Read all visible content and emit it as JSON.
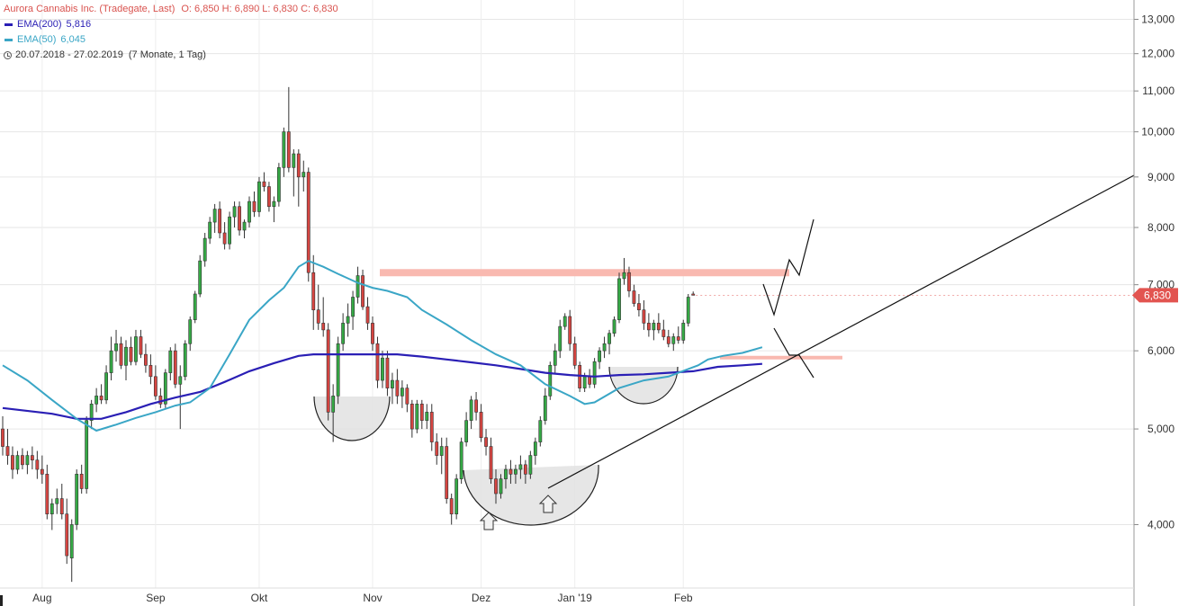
{
  "header": {
    "title": "Aurora Cannabis Inc. (Tradegate, Last)",
    "ohlc": "O: 6,850  H: 6,890  L: 6,830  C: 6,830",
    "ema200_label": "EMA(200)",
    "ema200_value": "5,816",
    "ema50_label": "EMA(50)",
    "ema50_value": "6,045",
    "range": "20.07.2018 - 27.02.2019",
    "period": "(7 Monate, 1 Tag)"
  },
  "colors": {
    "up": "#35a945",
    "down": "#d64541",
    "ema200": "#2a1fb5",
    "ema50": "#3aa6c6",
    "resistance": "#f9b9b0",
    "current": "#e25450",
    "title": "#d9534f"
  },
  "chart_data": {
    "type": "candlestick",
    "yscale": "log",
    "ylim": [
      3.45,
      13.6
    ],
    "yticks": [
      {
        "v": 13,
        "label": "13,000"
      },
      {
        "v": 12,
        "label": "12,000"
      },
      {
        "v": 11,
        "label": "11,000"
      },
      {
        "v": 10,
        "label": "10,000"
      },
      {
        "v": 9,
        "label": "9,000"
      },
      {
        "v": 8,
        "label": "8,000"
      },
      {
        "v": 7,
        "label": "7,000"
      },
      {
        "v": 6,
        "label": "6,000"
      },
      {
        "v": 5,
        "label": "5,000"
      },
      {
        "v": 4,
        "label": "4,000"
      }
    ],
    "xticks": [
      {
        "label": "Aug",
        "i": 8
      },
      {
        "label": "Sep",
        "i": 31
      },
      {
        "label": "Okt",
        "i": 52
      },
      {
        "label": "Nov",
        "i": 75
      },
      {
        "label": "Dez",
        "i": 97
      },
      {
        "label": "Jan '19",
        "i": 116
      },
      {
        "label": "Feb",
        "i": 138
      }
    ],
    "current_price": "6,830",
    "current_value": 6.83,
    "ohlc": [
      [
        5.0,
        5.15,
        4.7,
        4.8
      ],
      [
        4.8,
        5.0,
        4.6,
        4.7
      ],
      [
        4.7,
        4.8,
        4.45,
        4.55
      ],
      [
        4.55,
        4.75,
        4.5,
        4.7
      ],
      [
        4.7,
        4.78,
        4.55,
        4.6
      ],
      [
        4.6,
        4.75,
        4.5,
        4.7
      ],
      [
        4.7,
        4.8,
        4.55,
        4.65
      ],
      [
        4.65,
        4.75,
        4.45,
        4.55
      ],
      [
        4.55,
        4.7,
        4.4,
        4.5
      ],
      [
        4.5,
        4.6,
        4.05,
        4.1
      ],
      [
        4.1,
        4.25,
        3.95,
        4.2
      ],
      [
        4.2,
        4.35,
        4.1,
        4.25
      ],
      [
        4.25,
        4.4,
        4.05,
        4.1
      ],
      [
        4.1,
        4.25,
        3.65,
        3.72
      ],
      [
        3.7,
        4.05,
        3.5,
        4.0
      ],
      [
        4.0,
        4.55,
        3.95,
        4.5
      ],
      [
        4.5,
        4.6,
        4.3,
        4.35
      ],
      [
        4.35,
        5.15,
        4.3,
        5.1
      ],
      [
        5.1,
        5.35,
        5.0,
        5.3
      ],
      [
        5.3,
        5.5,
        5.2,
        5.4
      ],
      [
        5.4,
        5.55,
        5.3,
        5.35
      ],
      [
        5.35,
        5.8,
        5.3,
        5.7
      ],
      [
        5.7,
        6.2,
        5.6,
        6.0
      ],
      [
        6.0,
        6.3,
        5.85,
        6.1
      ],
      [
        6.1,
        6.2,
        5.75,
        5.8
      ],
      [
        5.8,
        6.15,
        5.6,
        6.05
      ],
      [
        6.05,
        6.2,
        5.8,
        5.85
      ],
      [
        5.85,
        6.3,
        5.8,
        6.2
      ],
      [
        6.2,
        6.3,
        5.9,
        5.95
      ],
      [
        5.95,
        6.1,
        5.7,
        5.8
      ],
      [
        5.8,
        5.95,
        5.55,
        5.65
      ],
      [
        5.65,
        5.8,
        5.35,
        5.4
      ],
      [
        5.4,
        5.5,
        5.25,
        5.3
      ],
      [
        5.3,
        5.75,
        5.25,
        5.7
      ],
      [
        5.7,
        6.05,
        5.6,
        6.0
      ],
      [
        6.0,
        6.1,
        5.5,
        5.55
      ],
      [
        5.55,
        5.8,
        5.0,
        5.65
      ],
      [
        5.65,
        6.15,
        5.6,
        6.1
      ],
      [
        6.1,
        6.5,
        6.0,
        6.45
      ],
      [
        6.45,
        6.9,
        6.4,
        6.85
      ],
      [
        6.85,
        7.5,
        6.8,
        7.4
      ],
      [
        7.4,
        7.9,
        7.3,
        7.8
      ],
      [
        7.8,
        8.2,
        7.7,
        8.1
      ],
      [
        8.1,
        8.45,
        7.9,
        8.35
      ],
      [
        8.35,
        8.5,
        7.8,
        7.9
      ],
      [
        7.9,
        8.1,
        7.6,
        7.7
      ],
      [
        7.7,
        8.3,
        7.6,
        8.2
      ],
      [
        8.2,
        8.5,
        8.0,
        8.4
      ],
      [
        8.4,
        8.5,
        7.85,
        7.95
      ],
      [
        7.95,
        8.15,
        7.8,
        8.1
      ],
      [
        8.1,
        8.6,
        8.0,
        8.5
      ],
      [
        8.5,
        8.7,
        8.2,
        8.3
      ],
      [
        8.3,
        9.0,
        8.2,
        8.9
      ],
      [
        8.9,
        9.1,
        8.7,
        8.8
      ],
      [
        8.8,
        8.9,
        8.3,
        8.4
      ],
      [
        8.4,
        8.6,
        8.1,
        8.5
      ],
      [
        8.5,
        9.3,
        8.4,
        9.2
      ],
      [
        9.2,
        10.1,
        9.0,
        10.0
      ],
      [
        10.0,
        11.1,
        9.1,
        9.2
      ],
      [
        9.2,
        9.6,
        8.6,
        9.5
      ],
      [
        9.5,
        9.6,
        8.4,
        9.0
      ],
      [
        9.0,
        9.35,
        8.7,
        9.1
      ],
      [
        9.1,
        9.2,
        7.05,
        7.2
      ],
      [
        7.2,
        7.5,
        6.3,
        6.6
      ],
      [
        6.6,
        7.0,
        6.3,
        6.4
      ],
      [
        6.4,
        6.8,
        6.2,
        6.3
      ],
      [
        6.3,
        6.4,
        5.1,
        5.2
      ],
      [
        5.2,
        5.55,
        4.85,
        5.4
      ],
      [
        5.4,
        6.2,
        5.3,
        6.1
      ],
      [
        6.1,
        6.55,
        6.0,
        6.4
      ],
      [
        6.4,
        6.7,
        6.2,
        6.5
      ],
      [
        6.5,
        6.9,
        6.3,
        6.8
      ],
      [
        6.8,
        7.3,
        6.7,
        7.15
      ],
      [
        7.15,
        7.25,
        6.6,
        6.65
      ],
      [
        6.65,
        6.8,
        6.3,
        6.4
      ],
      [
        6.4,
        6.5,
        6.0,
        6.1
      ],
      [
        6.1,
        6.2,
        5.5,
        5.6
      ],
      [
        5.6,
        6.0,
        5.5,
        5.9
      ],
      [
        5.9,
        6.0,
        5.4,
        5.5
      ],
      [
        5.5,
        5.7,
        5.3,
        5.6
      ],
      [
        5.6,
        5.75,
        5.3,
        5.4
      ],
      [
        5.4,
        5.6,
        5.25,
        5.5
      ],
      [
        5.5,
        5.55,
        5.2,
        5.3
      ],
      [
        5.3,
        5.35,
        4.9,
        5.0
      ],
      [
        5.0,
        5.35,
        4.95,
        5.3
      ],
      [
        5.3,
        5.35,
        5.0,
        5.1
      ],
      [
        5.1,
        5.3,
        5.0,
        5.2
      ],
      [
        5.2,
        5.3,
        4.75,
        4.85
      ],
      [
        4.85,
        4.95,
        4.6,
        4.7
      ],
      [
        4.7,
        4.9,
        4.5,
        4.8
      ],
      [
        4.8,
        4.9,
        4.2,
        4.25
      ],
      [
        4.25,
        4.3,
        4.0,
        4.1
      ],
      [
        4.1,
        4.5,
        4.05,
        4.45
      ],
      [
        4.45,
        4.9,
        4.4,
        4.85
      ],
      [
        4.85,
        5.2,
        4.8,
        5.1
      ],
      [
        5.1,
        5.4,
        5.0,
        5.35
      ],
      [
        5.35,
        5.45,
        5.1,
        5.2
      ],
      [
        5.2,
        5.3,
        4.85,
        4.9
      ],
      [
        4.9,
        5.0,
        4.7,
        4.8
      ],
      [
        4.8,
        4.9,
        4.4,
        4.45
      ],
      [
        4.45,
        4.55,
        4.2,
        4.3
      ],
      [
        4.3,
        4.5,
        4.25,
        4.45
      ],
      [
        4.45,
        4.6,
        4.35,
        4.55
      ],
      [
        4.55,
        4.65,
        4.4,
        4.5
      ],
      [
        4.5,
        4.6,
        4.4,
        4.55
      ],
      [
        4.55,
        4.7,
        4.45,
        4.6
      ],
      [
        4.6,
        4.65,
        4.4,
        4.5
      ],
      [
        4.5,
        4.75,
        4.45,
        4.7
      ],
      [
        4.7,
        4.9,
        4.6,
        4.85
      ],
      [
        4.85,
        5.15,
        4.8,
        5.1
      ],
      [
        5.1,
        5.5,
        5.05,
        5.4
      ],
      [
        5.4,
        5.85,
        5.35,
        5.8
      ],
      [
        5.8,
        6.1,
        5.7,
        6.0
      ],
      [
        6.0,
        6.45,
        5.9,
        6.35
      ],
      [
        6.35,
        6.55,
        6.3,
        6.5
      ],
      [
        6.5,
        6.6,
        6.0,
        6.1
      ],
      [
        6.1,
        6.2,
        5.75,
        5.8
      ],
      [
        5.8,
        5.85,
        5.45,
        5.5
      ],
      [
        5.5,
        5.7,
        5.45,
        5.65
      ],
      [
        5.65,
        5.75,
        5.5,
        5.55
      ],
      [
        5.55,
        5.9,
        5.5,
        5.85
      ],
      [
        5.85,
        6.05,
        5.75,
        6.0
      ],
      [
        6.0,
        6.2,
        5.9,
        6.1
      ],
      [
        6.1,
        6.3,
        5.95,
        6.25
      ],
      [
        6.25,
        6.5,
        6.2,
        6.45
      ],
      [
        6.45,
        7.2,
        6.4,
        7.1
      ],
      [
        7.1,
        7.45,
        7.0,
        7.2
      ],
      [
        7.2,
        7.3,
        6.8,
        6.9
      ],
      [
        6.9,
        7.0,
        6.65,
        6.7
      ],
      [
        6.7,
        6.85,
        6.5,
        6.6
      ],
      [
        6.6,
        6.75,
        6.3,
        6.4
      ],
      [
        6.4,
        6.55,
        6.2,
        6.3
      ],
      [
        6.3,
        6.45,
        6.15,
        6.4
      ],
      [
        6.4,
        6.55,
        6.25,
        6.3
      ],
      [
        6.3,
        6.45,
        6.15,
        6.2
      ],
      [
        6.2,
        6.3,
        6.05,
        6.1
      ],
      [
        6.1,
        6.25,
        6.0,
        6.2
      ],
      [
        6.2,
        6.35,
        6.1,
        6.15
      ],
      [
        6.15,
        6.45,
        6.1,
        6.4
      ],
      [
        6.4,
        6.85,
        6.35,
        6.8
      ],
      [
        6.85,
        6.89,
        6.83,
        6.83
      ]
    ],
    "series": [
      {
        "name": "EMA(200)",
        "points": [
          [
            0,
            5.25
          ],
          [
            10,
            5.18
          ],
          [
            15,
            5.12
          ],
          [
            20,
            5.12
          ],
          [
            25,
            5.2
          ],
          [
            30,
            5.3
          ],
          [
            35,
            5.38
          ],
          [
            40,
            5.45
          ],
          [
            45,
            5.58
          ],
          [
            50,
            5.72
          ],
          [
            55,
            5.83
          ],
          [
            60,
            5.93
          ],
          [
            63,
            5.95
          ],
          [
            70,
            5.95
          ],
          [
            75,
            5.95
          ],
          [
            80,
            5.95
          ],
          [
            85,
            5.92
          ],
          [
            90,
            5.88
          ],
          [
            95,
            5.84
          ],
          [
            100,
            5.8
          ],
          [
            105,
            5.75
          ],
          [
            110,
            5.7
          ],
          [
            115,
            5.67
          ],
          [
            120,
            5.65
          ],
          [
            125,
            5.67
          ],
          [
            130,
            5.68
          ],
          [
            135,
            5.7
          ],
          [
            140,
            5.72
          ],
          [
            145,
            5.78
          ],
          [
            150,
            5.8
          ],
          [
            154,
            5.82
          ]
        ]
      },
      {
        "name": "EMA(50)",
        "points": [
          [
            0,
            5.8
          ],
          [
            5,
            5.6
          ],
          [
            10,
            5.35
          ],
          [
            15,
            5.12
          ],
          [
            19,
            4.98
          ],
          [
            23,
            5.05
          ],
          [
            27,
            5.13
          ],
          [
            31,
            5.2
          ],
          [
            35,
            5.28
          ],
          [
            38,
            5.32
          ],
          [
            42,
            5.5
          ],
          [
            46,
            5.95
          ],
          [
            50,
            6.45
          ],
          [
            54,
            6.75
          ],
          [
            57,
            6.95
          ],
          [
            60,
            7.3
          ],
          [
            62,
            7.4
          ],
          [
            65,
            7.3
          ],
          [
            68,
            7.18
          ],
          [
            72,
            7.03
          ],
          [
            75,
            6.95
          ],
          [
            78,
            6.9
          ],
          [
            82,
            6.8
          ],
          [
            85,
            6.6
          ],
          [
            90,
            6.38
          ],
          [
            95,
            6.15
          ],
          [
            100,
            5.95
          ],
          [
            105,
            5.8
          ],
          [
            110,
            5.55
          ],
          [
            115,
            5.4
          ],
          [
            118,
            5.3
          ],
          [
            120,
            5.32
          ],
          [
            125,
            5.5
          ],
          [
            130,
            5.6
          ],
          [
            135,
            5.65
          ],
          [
            139,
            5.75
          ],
          [
            141,
            5.8
          ],
          [
            143,
            5.88
          ],
          [
            146,
            5.93
          ],
          [
            150,
            5.97
          ],
          [
            154,
            6.05
          ]
        ]
      }
    ],
    "annotations": {
      "resistance_upper": 7.2,
      "resistance_lower": 5.9
    }
  }
}
